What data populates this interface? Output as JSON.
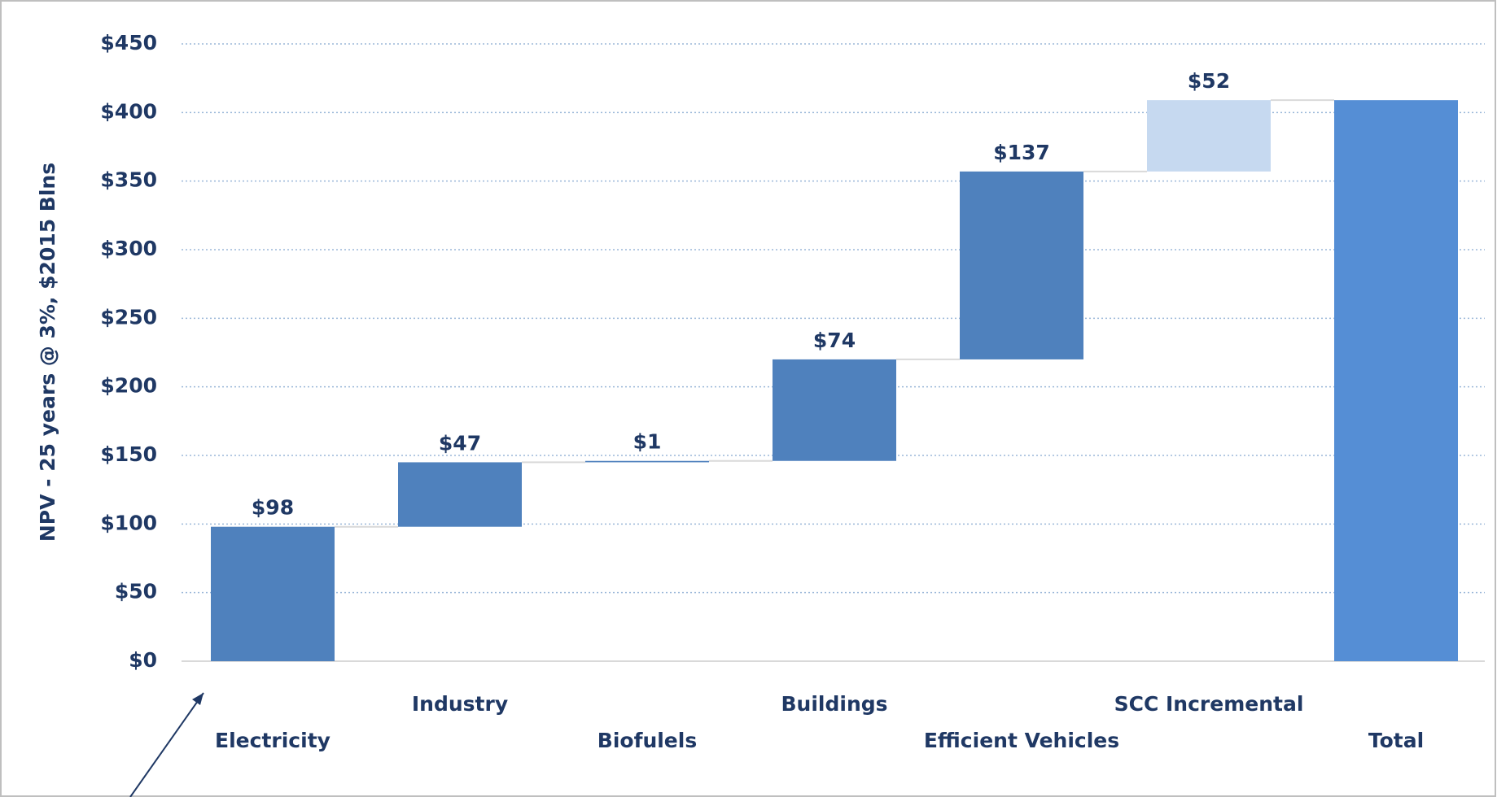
{
  "chart_data": {
    "type": "waterfall",
    "y_label": "NPV - 25 years @ 3%, $2015 Blns",
    "categories": [
      "Electricity",
      "Industry",
      "Biofulels",
      "Buildings",
      "Efficient Vehicles",
      "SCC Incremental",
      "Total"
    ],
    "values": [
      98,
      47,
      1,
      74,
      137,
      52,
      409
    ],
    "value_labels": [
      "$98",
      "$47",
      "$1",
      "$74",
      "$137",
      "$52",
      null
    ],
    "colors": [
      "#4f81bd",
      "#4f81bd",
      "#4f81bd",
      "#4f81bd",
      "#4f81bd",
      "#c6d9f0",
      "#558ed5"
    ],
    "ylim": [
      0,
      450
    ],
    "yticks": [
      {
        "value": 0,
        "label": "$0"
      },
      {
        "value": 50,
        "label": "$50"
      },
      {
        "value": 100,
        "label": "$100"
      },
      {
        "value": 150,
        "label": "$150"
      },
      {
        "value": 200,
        "label": "$200"
      },
      {
        "value": 250,
        "label": "$250"
      },
      {
        "value": 300,
        "label": "$300"
      },
      {
        "value": 350,
        "label": "$350"
      },
      {
        "value": 400,
        "label": "$400"
      },
      {
        "value": 450,
        "label": "$450"
      }
    ],
    "grid": true
  }
}
